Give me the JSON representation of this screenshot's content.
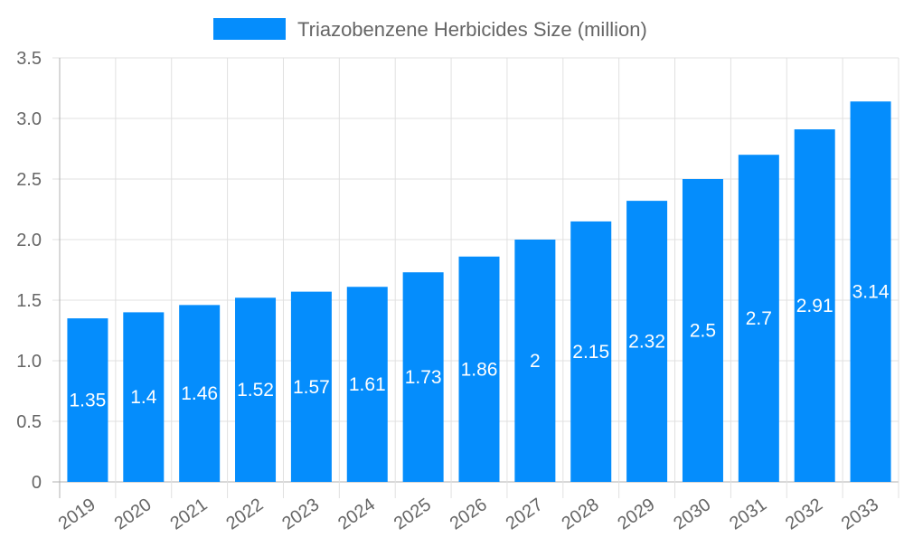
{
  "chart_data": {
    "type": "bar",
    "title": "",
    "xlabel": "",
    "ylabel": "",
    "categories": [
      "2019",
      "2020",
      "2021",
      "2022",
      "2023",
      "2024",
      "2025",
      "2026",
      "2027",
      "2028",
      "2029",
      "2030",
      "2031",
      "2032",
      "2033"
    ],
    "series": [
      {
        "name": "Triazobenzene Herbicides Size (million)",
        "values": [
          1.35,
          1.4,
          1.46,
          1.52,
          1.57,
          1.61,
          1.73,
          1.86,
          2,
          2.15,
          2.32,
          2.5,
          2.7,
          2.91,
          3.14
        ],
        "color": "#058DFC"
      }
    ],
    "data_labels": [
      "1.35",
      "1.4",
      "1.46",
      "1.52",
      "1.57",
      "1.61",
      "1.73",
      "1.86",
      "2",
      "2.15",
      "2.32",
      "2.5",
      "2.7",
      "2.91",
      "3.14"
    ],
    "ylim": [
      0,
      3.5
    ],
    "y_ticks": [
      0,
      0.5,
      1.0,
      1.5,
      2.0,
      2.5,
      3.0,
      3.5
    ],
    "y_tick_labels": [
      "0",
      "0.5",
      "1.0",
      "1.5",
      "2.0",
      "2.5",
      "3.0",
      "3.5"
    ],
    "grid": true,
    "legend_position": "top",
    "colors": {
      "bar": "#058DFC",
      "grid": "#e0e0e0",
      "text": "#666666",
      "data_label": "#ffffff"
    }
  }
}
